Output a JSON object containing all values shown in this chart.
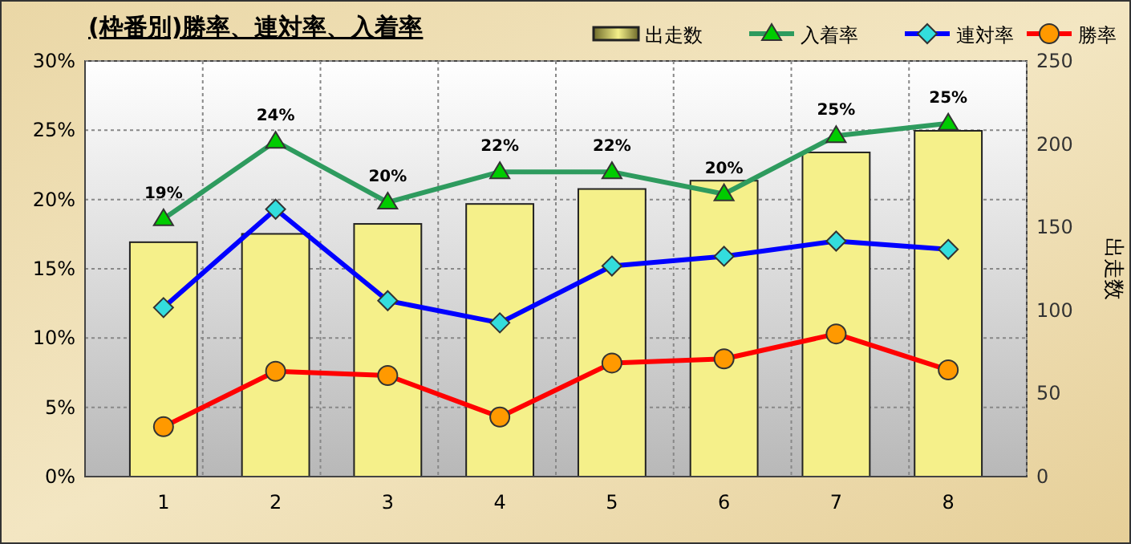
{
  "chart_data": {
    "type": "bar",
    "title": "(枠番別)勝率、連対率、入着率",
    "y2label": "出走数",
    "categories": [
      "1",
      "2",
      "3",
      "4",
      "5",
      "6",
      "7",
      "8"
    ],
    "series": [
      {
        "name": "出走数",
        "axis": "y2",
        "color": "#f5f08a",
        "values": [
          141,
          146,
          152,
          164,
          173,
          178,
          195,
          208
        ]
      },
      {
        "name": "入着率",
        "type": "line",
        "color": "#2e9b5e",
        "marker": "triangle",
        "values": [
          18.6,
          24.2,
          19.8,
          22.0,
          22.0,
          20.4,
          24.6,
          25.5
        ],
        "value_labels": [
          "19%",
          "24%",
          "20%",
          "22%",
          "22%",
          "20%",
          "25%",
          "25%"
        ]
      },
      {
        "name": "連対率",
        "type": "line",
        "color": "#0000ff",
        "marker": "diamond",
        "values": [
          12.2,
          19.3,
          12.7,
          11.1,
          15.2,
          15.9,
          17.0,
          16.4
        ]
      },
      {
        "name": "勝率",
        "type": "line",
        "color": "#ff0000",
        "marker": "circle",
        "values": [
          3.6,
          7.6,
          7.3,
          4.3,
          8.2,
          8.5,
          10.3,
          7.7
        ]
      }
    ],
    "ylim": [
      0,
      30
    ],
    "yticks": [
      {
        "value": 0,
        "label": "0%"
      },
      {
        "value": 5,
        "label": "5%"
      },
      {
        "value": 10,
        "label": "10%"
      },
      {
        "value": 15,
        "label": "15%"
      },
      {
        "value": 20,
        "label": "20%"
      },
      {
        "value": 25,
        "label": "25%"
      },
      {
        "value": 30,
        "label": "30%"
      }
    ],
    "y2lim": [
      0,
      250
    ],
    "y2ticks": [
      0,
      50,
      100,
      150,
      200,
      250
    ],
    "grid": true,
    "legend": "top right"
  }
}
